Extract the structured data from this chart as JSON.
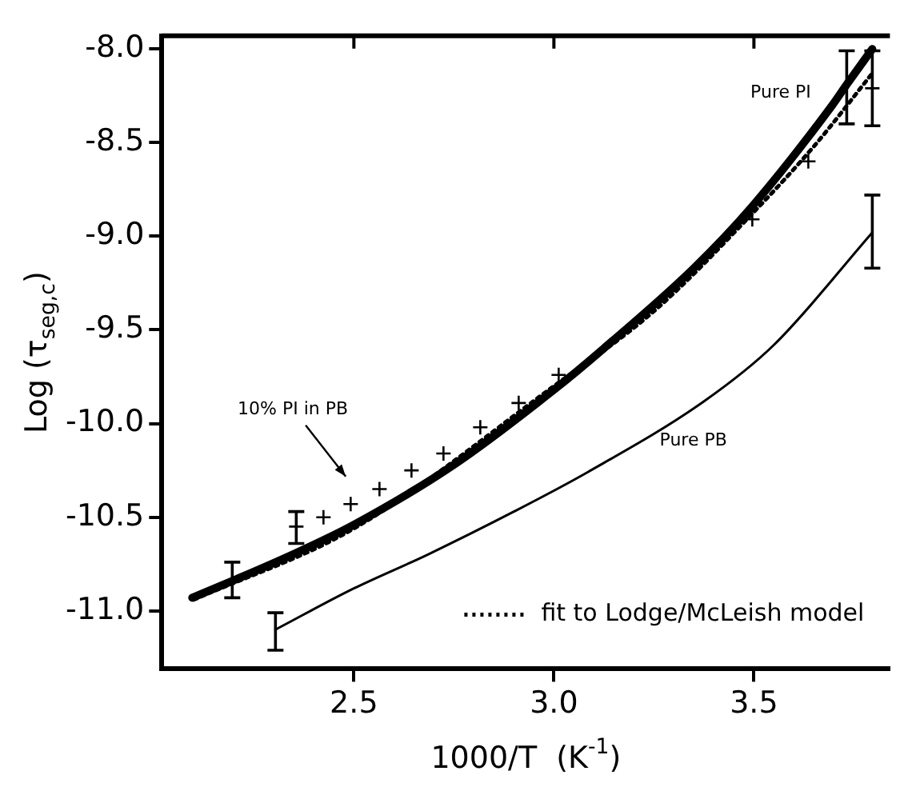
{
  "chart_data": {
    "type": "line",
    "xlabel": "1000/T  (K$^{-1}$)",
    "ylabel": "Log (τ$_{seg,c}$)",
    "xlim": [
      2.02,
      3.84
    ],
    "ylim": [
      -11.31,
      -7.93
    ],
    "xticks": [
      2.5,
      {
        "value": 3,
        "label": "3.0"
      },
      3.5
    ],
    "yticks": [
      {
        "value": -11,
        "label": "-11.0"
      },
      -10.5,
      {
        "value": -10,
        "label": "-10.0"
      },
      -9.5,
      {
        "value": -9,
        "label": "-9.0"
      },
      -8.5,
      {
        "value": -8,
        "label": "-8.0"
      }
    ],
    "grid": false,
    "legend": "bottom right",
    "series": [
      {
        "type": "line",
        "color": "#000000",
        "line_style": "solid",
        "marker": "none",
        "x": [
          2.096,
          2.196,
          2.356,
          2.5,
          2.75,
          3.0,
          3.124,
          3.35,
          3.496,
          3.696,
          3.732,
          3.796
        ],
        "values": [
          -10.93,
          -10.84,
          -10.69,
          -10.54,
          -10.22,
          -9.82,
          -9.6,
          -9.17,
          -8.84,
          -8.3,
          -8.19,
          -8.0
        ],
        "errors": [
          null,
          [
            -10.93,
            -10.74
          ],
          null,
          null,
          null,
          null,
          null,
          null,
          null,
          null,
          [
            -8.4,
            -8.01
          ],
          null
        ]
      },
      {
        "type": "line",
        "color": "#000000",
        "line_style": "solid",
        "marker": "none",
        "x": [
          2.304,
          2.5,
          2.684,
          2.9,
          3.084,
          3.376,
          3.55,
          3.796
        ],
        "values": [
          -11.1,
          -10.88,
          -10.7,
          -10.47,
          -10.26,
          -9.88,
          -9.58,
          -8.98
        ],
        "errors": [
          [
            -11.21,
            -11.01
          ],
          null,
          null,
          null,
          null,
          null,
          null,
          [
            -9.17,
            -8.78
          ]
        ]
      },
      {
        "type": "line",
        "name": "fit to Lodge/McLeish model",
        "color": "#000000",
        "line_style": "dotted",
        "marker": "none",
        "x": [
          2.1,
          2.5,
          3.0,
          3.25,
          3.5,
          3.65,
          3.796
        ],
        "values": [
          -10.94,
          -10.56,
          -9.8,
          -9.4,
          -8.87,
          -8.52,
          -8.13
        ]
      },
      {
        "type": "scatter",
        "color": "#000000",
        "marker": "cross",
        "x": [
          2.356,
          2.424,
          2.492,
          2.564,
          2.644,
          2.724,
          2.816,
          2.912,
          3.012,
          3.496,
          3.636,
          3.796
        ],
        "values": [
          -10.55,
          -10.5,
          -10.43,
          -10.35,
          -10.25,
          -10.16,
          -10.02,
          -9.89,
          -9.74,
          -8.91,
          -8.6,
          -8.21
        ],
        "errors": [
          [
            -10.64,
            -10.47
          ],
          null,
          null,
          null,
          null,
          null,
          null,
          null,
          null,
          null,
          null,
          [
            -8.41,
            -8.01
          ]
        ]
      }
    ],
    "annotations": [
      "Pure PI",
      "Pure PB",
      "10% PI in PB"
    ]
  }
}
